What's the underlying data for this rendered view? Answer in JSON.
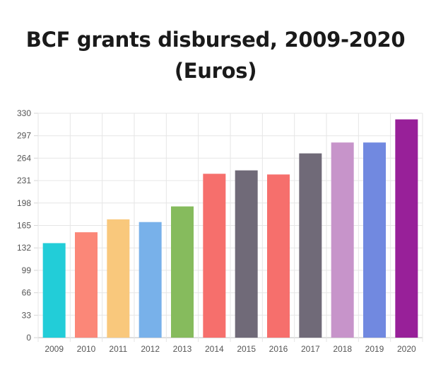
{
  "chart_data": {
    "type": "bar",
    "title": "BCF grants disbursed, 2009-2020 (Euros)",
    "xlabel": "",
    "ylabel": "",
    "categories": [
      "2009",
      "2010",
      "2011",
      "2012",
      "2013",
      "2014",
      "2015",
      "2016",
      "2017",
      "2018",
      "2019",
      "2020"
    ],
    "values": [
      139,
      155,
      174,
      170,
      193,
      241,
      246,
      240,
      271,
      287,
      287,
      321
    ],
    "ylim": [
      0,
      330
    ],
    "yticks": [
      0,
      33,
      66,
      99,
      132,
      165,
      198,
      231,
      264,
      297,
      330
    ],
    "grid": true,
    "colors": [
      "#22cdd8",
      "#fb8778",
      "#f9c87c",
      "#78b1ea",
      "#86bb5d",
      "#f66f6c",
      "#706a78",
      "#f66f6c",
      "#706a78",
      "#c794ca",
      "#7189e0",
      "#982099"
    ]
  }
}
